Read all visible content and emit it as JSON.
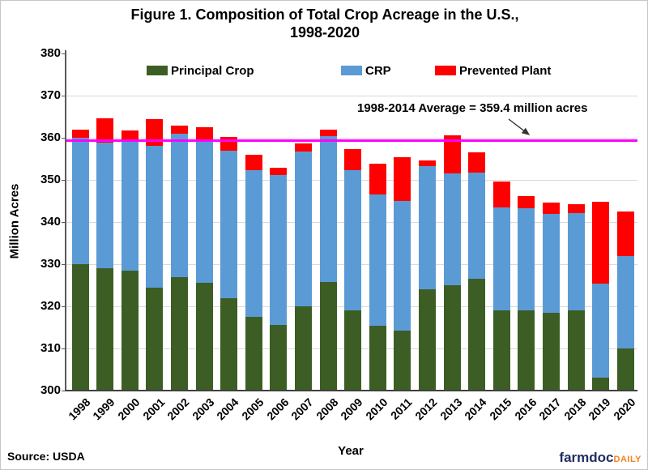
{
  "title": {
    "line1": "Figure 1. Composition of Total Crop Acreage in the U.S.,",
    "line2": "1998-2020"
  },
  "legend": [
    {
      "label": "Principal Crop",
      "color": "#3C5E24"
    },
    {
      "label": "CRP",
      "color": "#5B9BD5"
    },
    {
      "label": "Prevented Plant",
      "color": "#FF0000"
    }
  ],
  "annotation": {
    "text": "1998-2014 Average = 359.4 million acres",
    "value": 359.4,
    "line_color": "#FF00FF",
    "arrow_color": "#333333"
  },
  "axes": {
    "y_label": "Million Acres",
    "x_label": "Year",
    "y_min": 300,
    "y_max": 380,
    "y_ticks": [
      300,
      310,
      320,
      330,
      340,
      350,
      360,
      370,
      380
    ],
    "grid": "horizontal"
  },
  "source": "Source: USDA",
  "logo": {
    "farmdoc": "farmdoc",
    "daily": "DAILY"
  },
  "chart_data": {
    "type": "bar",
    "stacked": true,
    "title": "Figure 1. Composition of Total Crop Acreage in the U.S., 1998-2020",
    "xlabel": "Year",
    "ylabel": "Million Acres",
    "ylim": [
      300,
      380
    ],
    "baseline": 300,
    "legend_position": "top",
    "categories": [
      1998,
      1999,
      2000,
      2001,
      2002,
      2003,
      2004,
      2005,
      2006,
      2007,
      2008,
      2009,
      2010,
      2011,
      2012,
      2013,
      2014,
      2015,
      2016,
      2017,
      2018,
      2019,
      2020
    ],
    "series": [
      {
        "name": "Principal Crop",
        "color": "#3C5E24",
        "values": [
          330.0,
          329.0,
          328.5,
          324.5,
          327.0,
          325.5,
          322.0,
          317.5,
          315.5,
          320.0,
          325.7,
          319.0,
          315.4,
          314.3,
          324.0,
          325.0,
          326.5,
          319.0,
          319.0,
          318.4,
          319.1,
          303.1,
          310.0
        ]
      },
      {
        "name": "CRP",
        "color": "#5B9BD5",
        "values": [
          30.0,
          29.8,
          31.1,
          33.5,
          33.9,
          34.1,
          35.0,
          34.8,
          35.7,
          36.7,
          34.6,
          33.3,
          31.1,
          30.7,
          29.3,
          26.5,
          25.3,
          24.4,
          24.2,
          23.6,
          23.1,
          22.3,
          22.0
        ]
      },
      {
        "name": "Prevented Plant",
        "color": "#FF0000",
        "values": [
          2.0,
          5.8,
          2.2,
          6.4,
          2.0,
          2.9,
          3.2,
          3.7,
          1.6,
          2.0,
          1.7,
          5.0,
          7.3,
          10.4,
          1.4,
          9.1,
          4.7,
          6.3,
          3.0,
          2.7,
          2.1,
          19.4,
          10.5
        ]
      }
    ],
    "reference_line": {
      "label": "1998-2014 Average = 359.4 million acres",
      "value": 359.4
    }
  }
}
